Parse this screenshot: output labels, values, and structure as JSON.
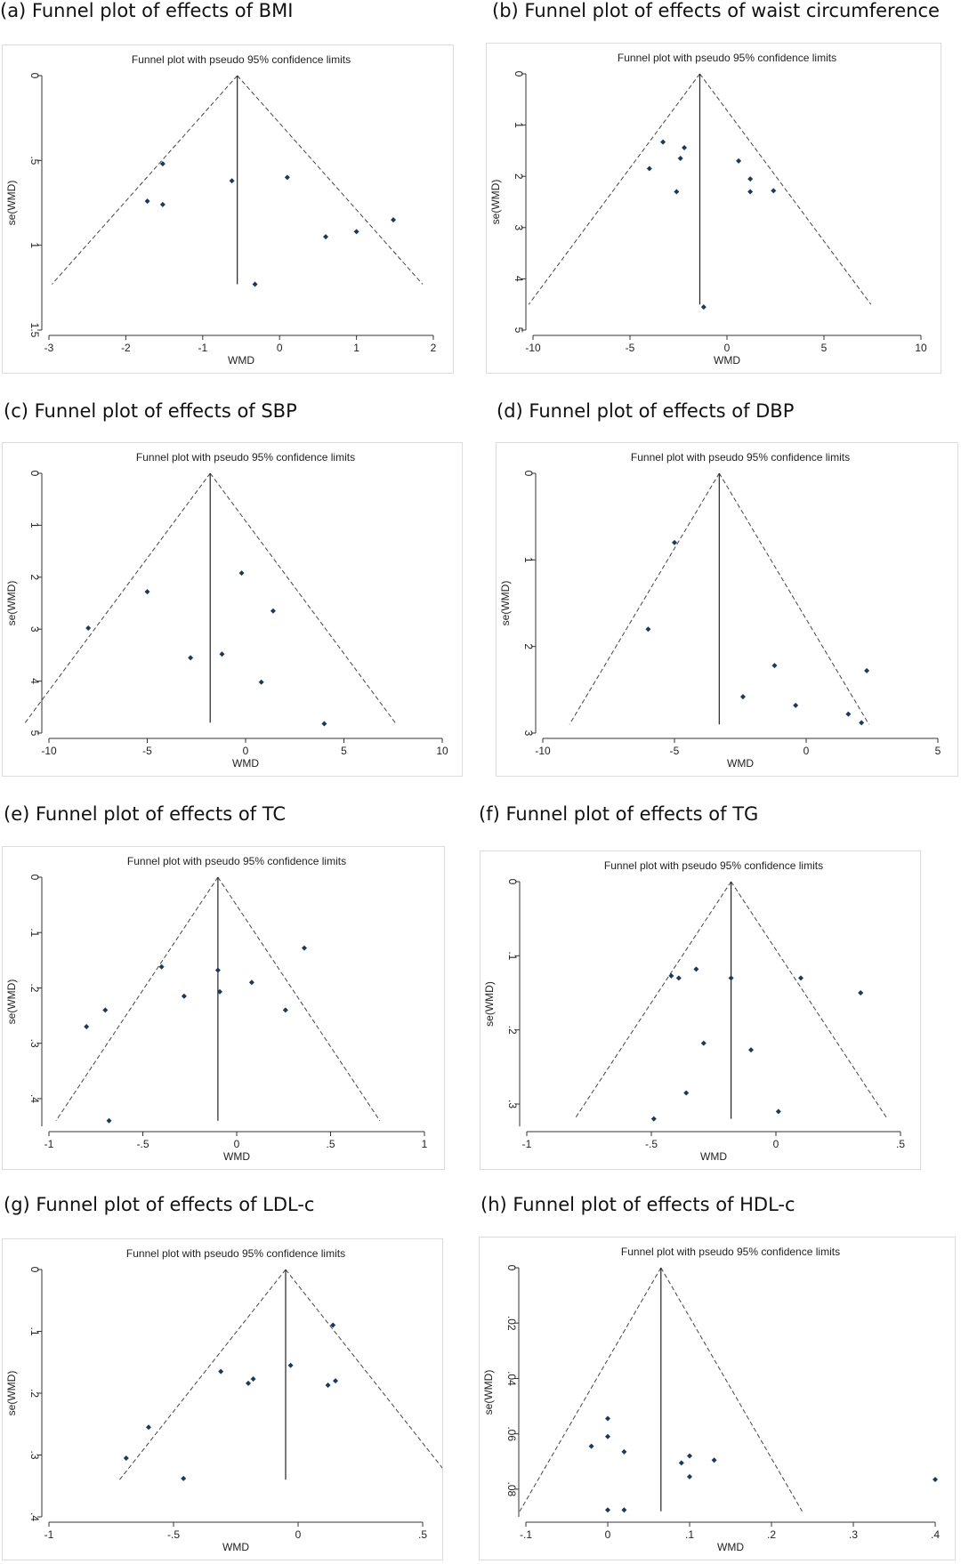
{
  "chart_data": [
    {
      "panel": "(a) Funnel plot of effects of BMI",
      "type": "scatter",
      "title": "Funnel plot with pseudo 95% confidence limits",
      "xlabel": "WMD",
      "ylabel": "se(WMD)",
      "xlim": [
        -3,
        2
      ],
      "ylim": [
        0,
        1.5
      ],
      "y_reversed": true,
      "xticks": [
        "-3",
        "-2",
        "-1",
        "0",
        "1",
        "2"
      ],
      "yticks": [
        "0",
        ".5",
        "1",
        "1.5"
      ],
      "pooled_effect": -0.55,
      "funnel_se_max": 1.23,
      "points": [
        {
          "x": -1.52,
          "y": 0.52
        },
        {
          "x": -1.72,
          "y": 0.74
        },
        {
          "x": -1.52,
          "y": 0.76
        },
        {
          "x": -0.62,
          "y": 0.62
        },
        {
          "x": 0.1,
          "y": 0.6
        },
        {
          "x": 1.48,
          "y": 0.85
        },
        {
          "x": 1.0,
          "y": 0.92
        },
        {
          "x": 0.6,
          "y": 0.95
        },
        {
          "x": -0.32,
          "y": 1.23
        }
      ]
    },
    {
      "panel": "(b) Funnel plot of effects of waist circumference",
      "type": "scatter",
      "title": "Funnel plot with pseudo 95% confidence limits",
      "xlabel": "WMD",
      "ylabel": "se(WMD)",
      "xlim": [
        -10,
        10
      ],
      "ylim": [
        0,
        5
      ],
      "y_reversed": true,
      "xticks": [
        "-10",
        "-5",
        "0",
        "5",
        "10"
      ],
      "yticks": [
        "0",
        "1",
        "2",
        "3",
        "4",
        "5"
      ],
      "pooled_effect": -1.4,
      "funnel_se_max": 4.5,
      "points": [
        {
          "x": -3.3,
          "y": 1.33
        },
        {
          "x": -2.2,
          "y": 1.44
        },
        {
          "x": -2.4,
          "y": 1.65
        },
        {
          "x": -4.0,
          "y": 1.85
        },
        {
          "x": -2.6,
          "y": 2.3
        },
        {
          "x": 0.6,
          "y": 1.7
        },
        {
          "x": 1.2,
          "y": 2.05
        },
        {
          "x": 1.2,
          "y": 2.3
        },
        {
          "x": 2.4,
          "y": 2.28
        },
        {
          "x": -1.2,
          "y": 4.55
        }
      ]
    },
    {
      "panel": "(c) Funnel plot of effects of SBP",
      "type": "scatter",
      "title": "Funnel plot with pseudo 95% confidence limits",
      "xlabel": "WMD",
      "ylabel": "se(WMD)",
      "xlim": [
        -10,
        10
      ],
      "ylim": [
        0,
        5
      ],
      "y_reversed": true,
      "xticks": [
        "-10",
        "-5",
        "0",
        "5",
        "10"
      ],
      "yticks": [
        "0",
        "1",
        "2",
        "3",
        "4",
        "5"
      ],
      "pooled_effect": -1.8,
      "funnel_se_max": 4.8,
      "points": [
        {
          "x": -0.2,
          "y": 1.92
        },
        {
          "x": -5.0,
          "y": 2.28
        },
        {
          "x": 1.4,
          "y": 2.65
        },
        {
          "x": -8.0,
          "y": 2.98
        },
        {
          "x": -2.8,
          "y": 3.55
        },
        {
          "x": -1.2,
          "y": 3.48
        },
        {
          "x": 0.8,
          "y": 4.02
        },
        {
          "x": 4.0,
          "y": 4.82
        }
      ]
    },
    {
      "panel": "(d) Funnel plot of effects of DBP",
      "type": "scatter",
      "title": "Funnel plot with pseudo 95% confidence limits",
      "xlabel": "WMD",
      "ylabel": "se(WMD)",
      "xlim": [
        -10,
        5
      ],
      "ylim": [
        0,
        3
      ],
      "y_reversed": true,
      "xticks": [
        "-10",
        "-5",
        "0",
        "5"
      ],
      "yticks": [
        "0",
        "1",
        "2",
        "3"
      ],
      "pooled_effect": -3.3,
      "funnel_se_max": 2.9,
      "points": [
        {
          "x": -5.0,
          "y": 0.8
        },
        {
          "x": -6.0,
          "y": 1.8
        },
        {
          "x": -1.2,
          "y": 2.22
        },
        {
          "x": 2.3,
          "y": 2.28
        },
        {
          "x": -2.4,
          "y": 2.58
        },
        {
          "x": -0.4,
          "y": 2.68
        },
        {
          "x": 1.6,
          "y": 2.78
        },
        {
          "x": 2.1,
          "y": 2.88
        }
      ]
    },
    {
      "panel": "(e) Funnel plot of effects of TC",
      "type": "scatter",
      "title": "Funnel plot with pseudo 95% confidence limits",
      "xlabel": "WMD",
      "ylabel": "se(WMD)",
      "xlim": [
        -1,
        1
      ],
      "ylim": [
        0,
        0.45
      ],
      "y_reversed": true,
      "xticks": [
        "-1",
        "-.5",
        "0",
        ".5",
        "1"
      ],
      "yticks": [
        "0",
        ".1",
        ".2",
        ".3",
        ".4"
      ],
      "pooled_effect": -0.1,
      "funnel_se_max": 0.44,
      "points": [
        {
          "x": 0.36,
          "y": 0.128
        },
        {
          "x": -0.4,
          "y": 0.162
        },
        {
          "x": -0.1,
          "y": 0.168
        },
        {
          "x": 0.08,
          "y": 0.19
        },
        {
          "x": -0.09,
          "y": 0.207
        },
        {
          "x": -0.28,
          "y": 0.215
        },
        {
          "x": 0.26,
          "y": 0.24
        },
        {
          "x": -0.7,
          "y": 0.24
        },
        {
          "x": -0.8,
          "y": 0.27
        },
        {
          "x": -0.68,
          "y": 0.44
        }
      ]
    },
    {
      "panel": "(f) Funnel plot of effects of TG",
      "type": "scatter",
      "title": "Funnel plot with pseudo 95% confidence limits",
      "xlabel": "WMD",
      "ylabel": "se(WMD)",
      "xlim": [
        -1,
        0.5
      ],
      "ylim": [
        0,
        0.33
      ],
      "y_reversed": true,
      "xticks": [
        "-1",
        "-.5",
        "0",
        ".5"
      ],
      "yticks": [
        "0",
        ".1",
        ".2",
        ".3"
      ],
      "pooled_effect": -0.18,
      "funnel_se_max": 0.32,
      "points": [
        {
          "x": -0.32,
          "y": 0.118
        },
        {
          "x": -0.42,
          "y": 0.127
        },
        {
          "x": -0.39,
          "y": 0.13
        },
        {
          "x": -0.18,
          "y": 0.13
        },
        {
          "x": 0.1,
          "y": 0.13
        },
        {
          "x": 0.34,
          "y": 0.15
        },
        {
          "x": -0.29,
          "y": 0.218
        },
        {
          "x": -0.1,
          "y": 0.227
        },
        {
          "x": -0.36,
          "y": 0.285
        },
        {
          "x": 0.01,
          "y": 0.31
        },
        {
          "x": -0.49,
          "y": 0.32
        }
      ]
    },
    {
      "panel": "(g) Funnel plot of effects of LDL-c",
      "type": "scatter",
      "title": "Funnel plot with pseudo 95% confidence limits",
      "xlabel": "WMD",
      "ylabel": "se(WMD)",
      "xlim": [
        -1,
        0.5
      ],
      "ylim": [
        0,
        0.4
      ],
      "y_reversed": true,
      "xticks": [
        "-1",
        "-.5",
        "0",
        ".5"
      ],
      "yticks": [
        "0",
        ".1",
        ".2",
        ".3",
        ".4"
      ],
      "pooled_effect": -0.05,
      "funnel_se_max": 0.34,
      "points": [
        {
          "x": 0.14,
          "y": 0.09
        },
        {
          "x": -0.03,
          "y": 0.155
        },
        {
          "x": -0.31,
          "y": 0.165
        },
        {
          "x": -0.18,
          "y": 0.177
        },
        {
          "x": -0.2,
          "y": 0.184
        },
        {
          "x": 0.15,
          "y": 0.18
        },
        {
          "x": 0.12,
          "y": 0.187
        },
        {
          "x": -0.6,
          "y": 0.255
        },
        {
          "x": -0.69,
          "y": 0.305
        },
        {
          "x": -0.46,
          "y": 0.338
        }
      ]
    },
    {
      "panel": "(h) Funnel plot of effects of HDL-c",
      "type": "scatter",
      "title": "Funnel plot with pseudo 95% confidence limits",
      "xlabel": "WMD",
      "ylabel": "se(WMD)",
      "xlim": [
        -0.1,
        0.4
      ],
      "ylim": [
        0,
        0.09
      ],
      "y_reversed": true,
      "xticks": [
        "-.1",
        "0",
        ".1",
        ".2",
        ".3",
        ".4"
      ],
      "yticks": [
        "0",
        ".02",
        ".04",
        ".06",
        ".08"
      ],
      "pooled_effect": 0.065,
      "funnel_se_max": 0.088,
      "points": [
        {
          "x": 0.0,
          "y": 0.0545
        },
        {
          "x": 0.0,
          "y": 0.061
        },
        {
          "x": -0.02,
          "y": 0.0645
        },
        {
          "x": 0.02,
          "y": 0.0665
        },
        {
          "x": 0.1,
          "y": 0.068
        },
        {
          "x": 0.13,
          "y": 0.0695
        },
        {
          "x": 0.09,
          "y": 0.0705
        },
        {
          "x": 0.1,
          "y": 0.0755
        },
        {
          "x": 0.4,
          "y": 0.0765
        },
        {
          "x": 0.0,
          "y": 0.0875
        },
        {
          "x": 0.02,
          "y": 0.0875
        }
      ]
    }
  ]
}
